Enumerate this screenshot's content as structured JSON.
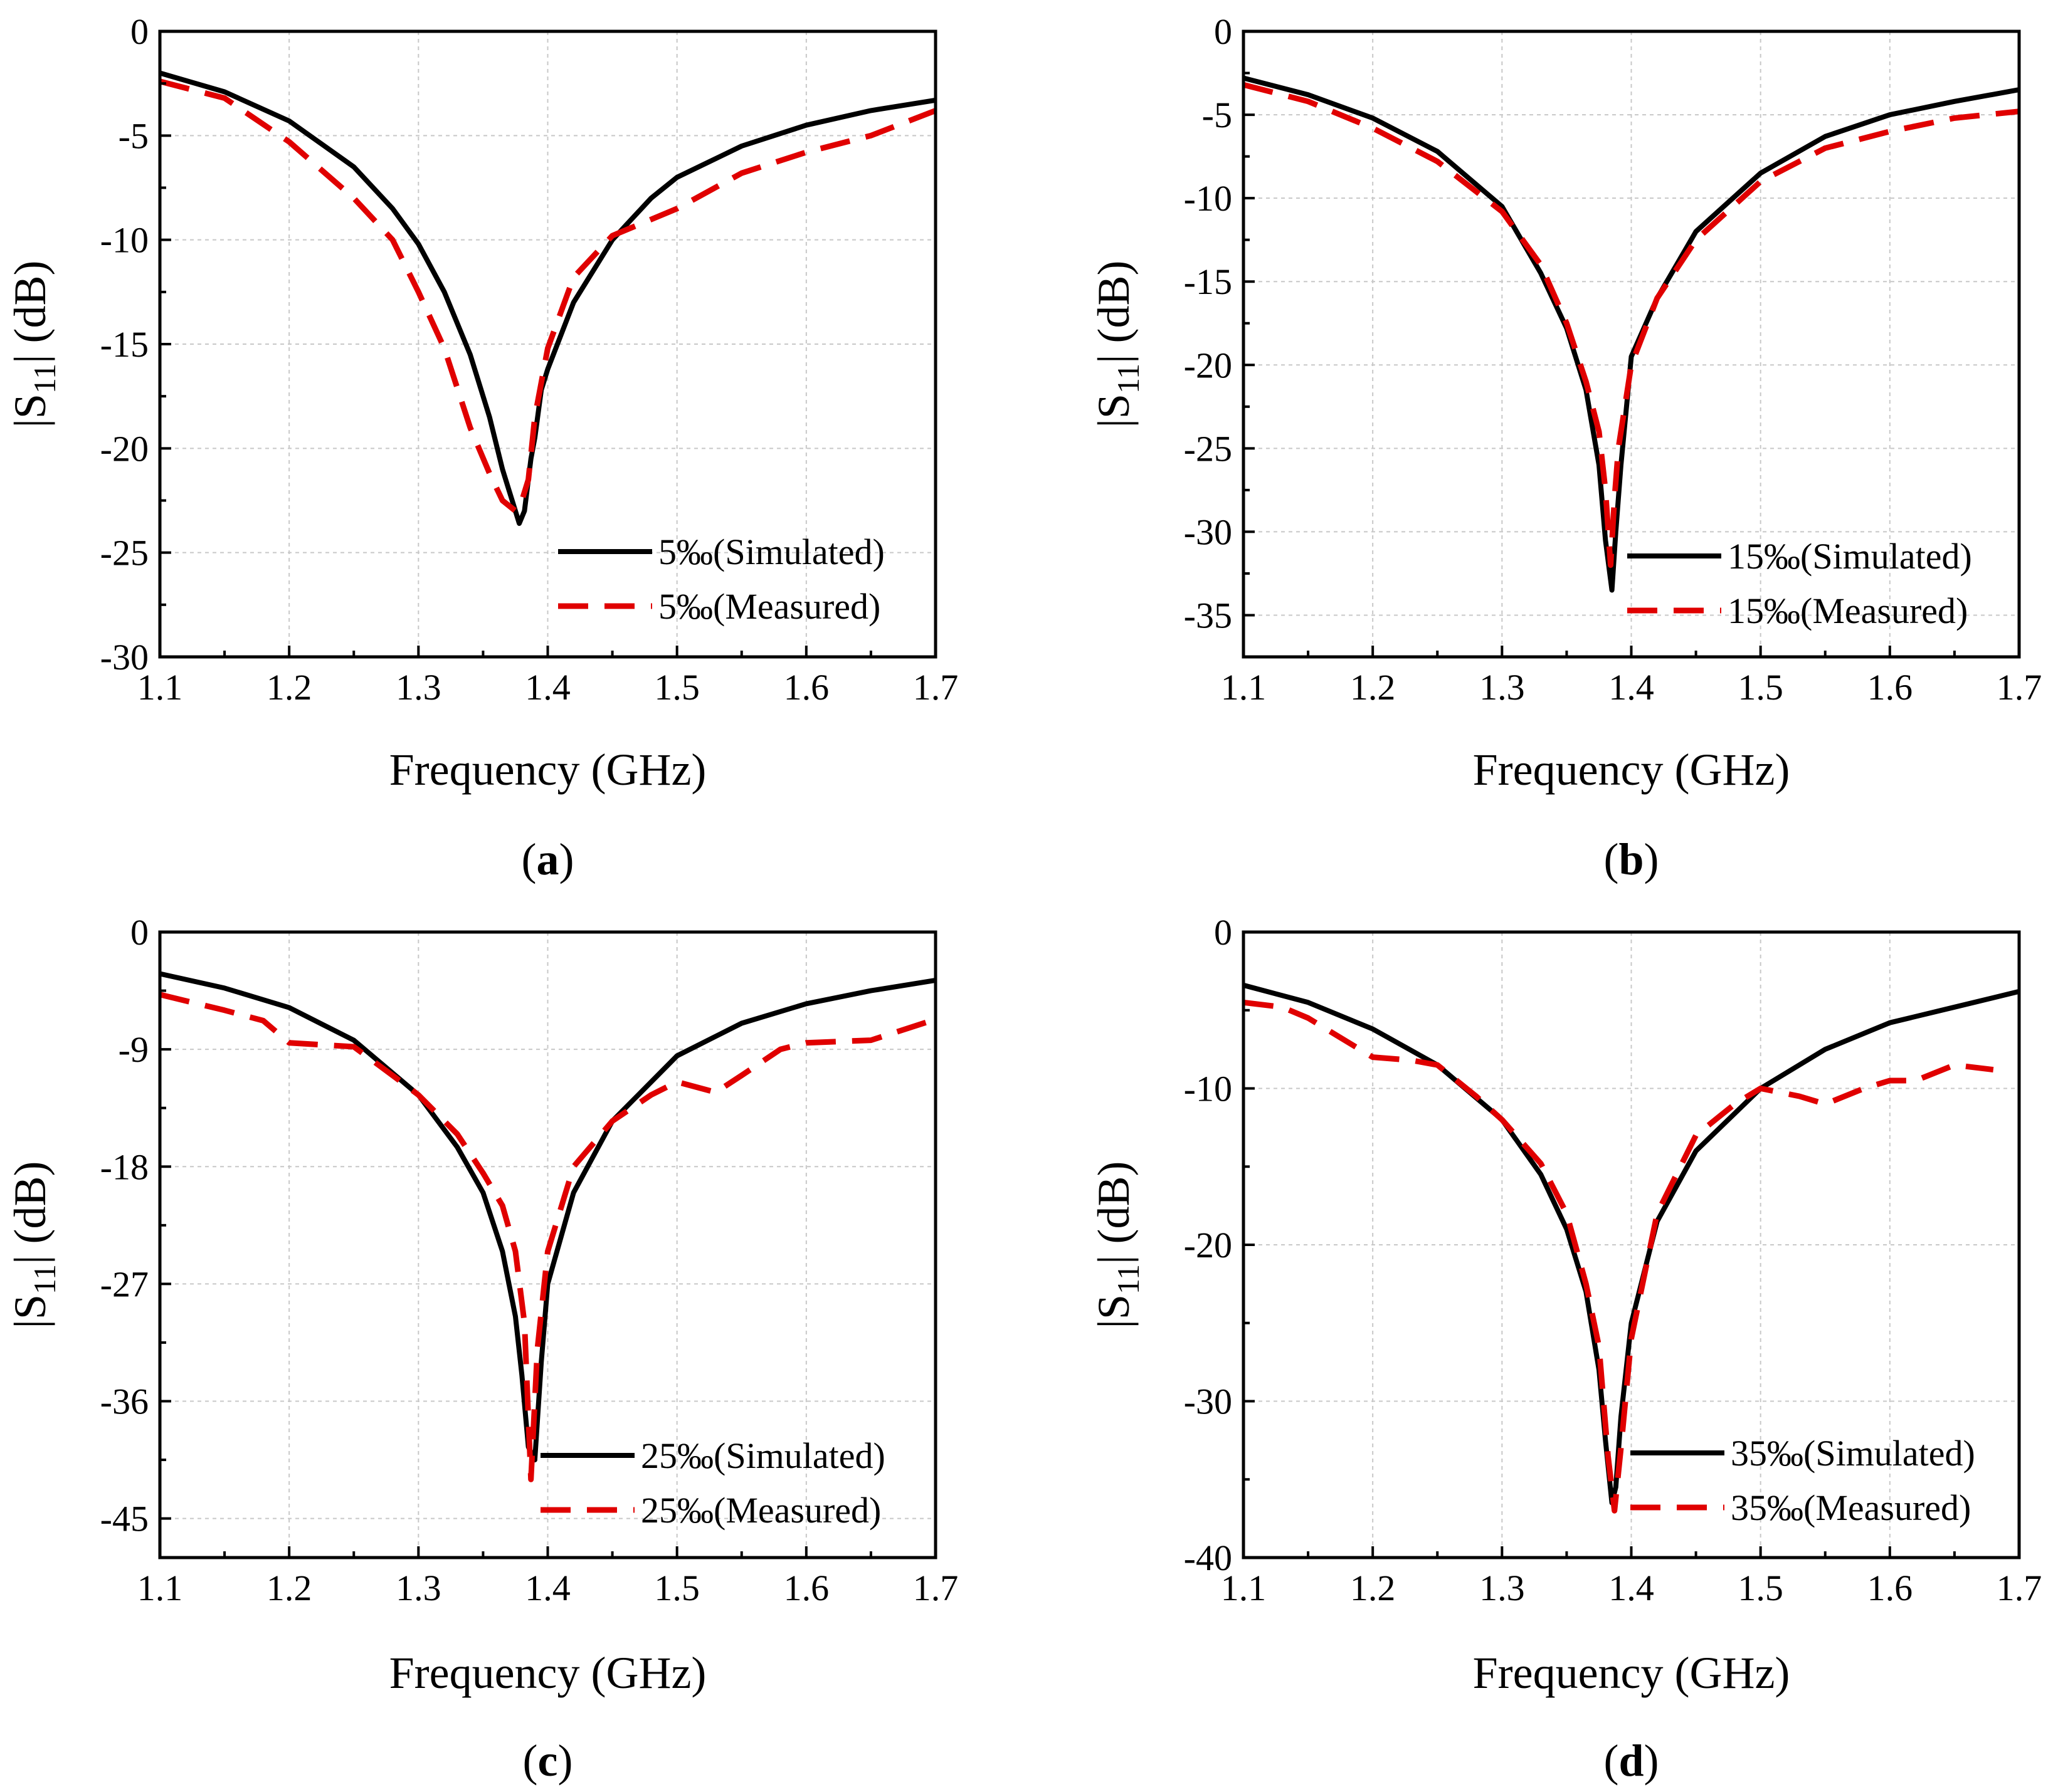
{
  "figure": {
    "panels": [
      {
        "label_open": "(",
        "label_letter": "a",
        "label_close": ")"
      },
      {
        "label_open": "(",
        "label_letter": "b",
        "label_close": ")"
      },
      {
        "label_open": "(",
        "label_letter": "c",
        "label_close": ")"
      },
      {
        "label_open": "(",
        "label_letter": "d",
        "label_close": ")"
      }
    ]
  },
  "chart_data": [
    {
      "type": "line",
      "panel": "a",
      "xlabel": "Frequency (GHz)",
      "ylabel": "|S11| (dB)",
      "ylabel_main": "|S",
      "ylabel_sub": "11",
      "ylabel_tail": "| (dB)",
      "xlim": [
        1.1,
        1.7
      ],
      "ylim": [
        -30,
        0
      ],
      "xticks": [
        1.1,
        1.2,
        1.3,
        1.4,
        1.5,
        1.6,
        1.7
      ],
      "xtick_labels": [
        "1.1",
        "1.2",
        "1.3",
        "1.4",
        "1.5",
        "1.6",
        "1.7"
      ],
      "yticks": [
        0,
        -5,
        -10,
        -15,
        -20,
        -25,
        -30
      ],
      "ytick_labels": [
        "0",
        "-5",
        "-10",
        "-15",
        "-20",
        "-25",
        "-30"
      ],
      "grid": true,
      "legend_position": "bottom-right",
      "series": [
        {
          "name": "5‰(Simulated)",
          "color": "#000000",
          "style": "solid",
          "x": [
            1.1,
            1.15,
            1.2,
            1.25,
            1.28,
            1.3,
            1.32,
            1.34,
            1.355,
            1.365,
            1.373,
            1.378,
            1.382,
            1.387,
            1.39,
            1.395,
            1.4,
            1.42,
            1.45,
            1.48,
            1.5,
            1.55,
            1.6,
            1.65,
            1.7
          ],
          "y": [
            -2.0,
            -2.9,
            -4.3,
            -6.5,
            -8.5,
            -10.2,
            -12.5,
            -15.5,
            -18.5,
            -21.0,
            -22.6,
            -23.6,
            -23.0,
            -20.5,
            -19.5,
            -17.2,
            -16.2,
            -13.0,
            -10.0,
            -8.0,
            -7.0,
            -5.5,
            -4.5,
            -3.8,
            -3.3
          ]
        },
        {
          "name": "5‰(Measured)",
          "color": "#e00000",
          "style": "dashed",
          "x": [
            1.1,
            1.15,
            1.2,
            1.25,
            1.28,
            1.3,
            1.32,
            1.34,
            1.355,
            1.365,
            1.375,
            1.38,
            1.385,
            1.39,
            1.4,
            1.42,
            1.45,
            1.5,
            1.55,
            1.6,
            1.65,
            1.7
          ],
          "y": [
            -2.4,
            -3.2,
            -5.3,
            -8.0,
            -10.0,
            -12.5,
            -15.2,
            -19.0,
            -21.2,
            -22.5,
            -23.0,
            -22.5,
            -21.5,
            -18.5,
            -15.2,
            -11.8,
            -9.8,
            -8.5,
            -6.8,
            -5.8,
            -5.0,
            -3.8
          ]
        }
      ]
    },
    {
      "type": "line",
      "panel": "b",
      "xlabel": "Frequency (GHz)",
      "ylabel": "|S11| (dB)",
      "ylabel_main": "|S",
      "ylabel_sub": "11",
      "ylabel_tail": "| (dB)",
      "xlim": [
        1.1,
        1.7
      ],
      "ylim": [
        -37.5,
        0
      ],
      "xticks": [
        1.1,
        1.2,
        1.3,
        1.4,
        1.5,
        1.6,
        1.7
      ],
      "xtick_labels": [
        "1.1",
        "1.2",
        "1.3",
        "1.4",
        "1.5",
        "1.6",
        "1.7"
      ],
      "yticks": [
        0,
        -5,
        -10,
        -15,
        -20,
        -25,
        -30,
        -35
      ],
      "ytick_labels": [
        "0",
        "-5",
        "-10",
        "-15",
        "-20",
        "-25",
        "-30",
        "-35"
      ],
      "grid": true,
      "legend_position": "bottom-right",
      "series": [
        {
          "name": "15‰(Simulated)",
          "color": "#000000",
          "style": "solid",
          "x": [
            1.1,
            1.15,
            1.2,
            1.25,
            1.3,
            1.33,
            1.35,
            1.365,
            1.375,
            1.38,
            1.385,
            1.388,
            1.392,
            1.4,
            1.42,
            1.45,
            1.5,
            1.55,
            1.6,
            1.65,
            1.7
          ],
          "y": [
            -2.8,
            -3.8,
            -5.2,
            -7.2,
            -10.5,
            -14.5,
            -17.8,
            -21.5,
            -26.0,
            -30.5,
            -33.5,
            -30.0,
            -26.0,
            -19.5,
            -16.0,
            -12.0,
            -8.5,
            -6.3,
            -5.0,
            -4.2,
            -3.5
          ]
        },
        {
          "name": "15‰(Measured)",
          "color": "#e00000",
          "style": "dashed",
          "x": [
            1.1,
            1.15,
            1.2,
            1.25,
            1.3,
            1.33,
            1.35,
            1.365,
            1.375,
            1.38,
            1.384,
            1.387,
            1.39,
            1.4,
            1.42,
            1.45,
            1.5,
            1.55,
            1.6,
            1.65,
            1.7
          ],
          "y": [
            -3.2,
            -4.2,
            -5.8,
            -7.8,
            -10.8,
            -14.0,
            -17.5,
            -21.0,
            -24.0,
            -27.5,
            -32.0,
            -28.0,
            -25.0,
            -20.0,
            -16.0,
            -12.5,
            -9.0,
            -7.0,
            -6.0,
            -5.2,
            -4.8
          ]
        }
      ]
    },
    {
      "type": "line",
      "panel": "c",
      "xlabel": "Frequency (GHz)",
      "ylabel": "|S11| (dB)",
      "ylabel_main": "|S",
      "ylabel_sub": "11",
      "ylabel_tail": "| (dB)",
      "xlim": [
        1.1,
        1.7
      ],
      "ylim": [
        -48,
        0
      ],
      "xticks": [
        1.1,
        1.2,
        1.3,
        1.4,
        1.5,
        1.6,
        1.7
      ],
      "xtick_labels": [
        "1.1",
        "1.2",
        "1.3",
        "1.4",
        "1.5",
        "1.6",
        "1.7"
      ],
      "yticks": [
        0,
        -9,
        -18,
        -27,
        -36,
        -45
      ],
      "ytick_labels": [
        "0",
        "-9",
        "-18",
        "-27",
        "-36",
        "-45"
      ],
      "grid": true,
      "legend_position": "bottom-right",
      "series": [
        {
          "name": "25‰(Simulated)",
          "color": "#000000",
          "style": "solid",
          "x": [
            1.1,
            1.15,
            1.2,
            1.25,
            1.3,
            1.33,
            1.35,
            1.365,
            1.375,
            1.38,
            1.385,
            1.39,
            1.395,
            1.4,
            1.42,
            1.45,
            1.5,
            1.55,
            1.6,
            1.65,
            1.7
          ],
          "y": [
            -3.2,
            -4.3,
            -5.8,
            -8.3,
            -12.5,
            -16.5,
            -20.0,
            -24.5,
            -29.5,
            -34.0,
            -39.5,
            -40.5,
            -33.0,
            -27.0,
            -20.0,
            -14.5,
            -9.5,
            -7.0,
            -5.5,
            -4.5,
            -3.7
          ]
        },
        {
          "name": "25‰(Measured)",
          "color": "#e00000",
          "style": "dashed",
          "x": [
            1.1,
            1.15,
            1.18,
            1.2,
            1.25,
            1.28,
            1.3,
            1.33,
            1.35,
            1.365,
            1.375,
            1.382,
            1.387,
            1.392,
            1.4,
            1.42,
            1.45,
            1.48,
            1.5,
            1.53,
            1.55,
            1.58,
            1.6,
            1.65,
            1.7
          ],
          "y": [
            -4.8,
            -6.0,
            -6.8,
            -8.5,
            -8.8,
            -11.0,
            -12.5,
            -15.5,
            -18.5,
            -21.0,
            -24.5,
            -30.0,
            -42.0,
            -32.0,
            -24.5,
            -18.0,
            -14.5,
            -12.5,
            -11.5,
            -12.3,
            -11.0,
            -9.0,
            -8.5,
            -8.3,
            -6.7
          ]
        }
      ]
    },
    {
      "type": "line",
      "panel": "d",
      "xlabel": "Frequency (GHz)",
      "ylabel": "|S11| (dB)",
      "ylabel_main": "|S",
      "ylabel_sub": "11",
      "ylabel_tail": "| (dB)",
      "xlim": [
        1.1,
        1.7
      ],
      "ylim": [
        -40,
        0
      ],
      "xticks": [
        1.1,
        1.2,
        1.3,
        1.4,
        1.5,
        1.6,
        1.7
      ],
      "xtick_labels": [
        "1.1",
        "1.2",
        "1.3",
        "1.4",
        "1.5",
        "1.6",
        "1.7"
      ],
      "yticks": [
        0,
        -10,
        -20,
        -30,
        -40
      ],
      "ytick_labels": [
        "0",
        "-10",
        "-20",
        "-30",
        "-40"
      ],
      "grid": true,
      "legend_position": "bottom-right",
      "series": [
        {
          "name": "35‰(Simulated)",
          "color": "#000000",
          "style": "solid",
          "x": [
            1.1,
            1.15,
            1.2,
            1.25,
            1.3,
            1.33,
            1.35,
            1.365,
            1.375,
            1.38,
            1.385,
            1.388,
            1.392,
            1.4,
            1.42,
            1.45,
            1.5,
            1.55,
            1.6,
            1.65,
            1.7
          ],
          "y": [
            -3.4,
            -4.5,
            -6.2,
            -8.5,
            -12.0,
            -15.5,
            -19.0,
            -23.0,
            -28.0,
            -32.5,
            -36.5,
            -35.5,
            -31.0,
            -25.0,
            -18.5,
            -14.0,
            -10.0,
            -7.5,
            -5.8,
            -4.8,
            -3.8
          ]
        },
        {
          "name": "35‰(Measured)",
          "color": "#e00000",
          "style": "dashed",
          "x": [
            1.1,
            1.13,
            1.15,
            1.18,
            1.2,
            1.23,
            1.25,
            1.28,
            1.3,
            1.33,
            1.35,
            1.365,
            1.375,
            1.382,
            1.387,
            1.392,
            1.4,
            1.42,
            1.45,
            1.48,
            1.5,
            1.53,
            1.55,
            1.58,
            1.6,
            1.62,
            1.65,
            1.68
          ],
          "y": [
            -4.5,
            -4.8,
            -5.5,
            -7.0,
            -8.0,
            -8.2,
            -8.5,
            -10.5,
            -12.0,
            -14.8,
            -18.0,
            -22.5,
            -26.5,
            -33.5,
            -37.0,
            -33.0,
            -26.0,
            -18.0,
            -13.0,
            -11.0,
            -10.0,
            -10.5,
            -11.0,
            -10.0,
            -9.5,
            -9.5,
            -8.5,
            -8.8
          ]
        }
      ]
    }
  ]
}
